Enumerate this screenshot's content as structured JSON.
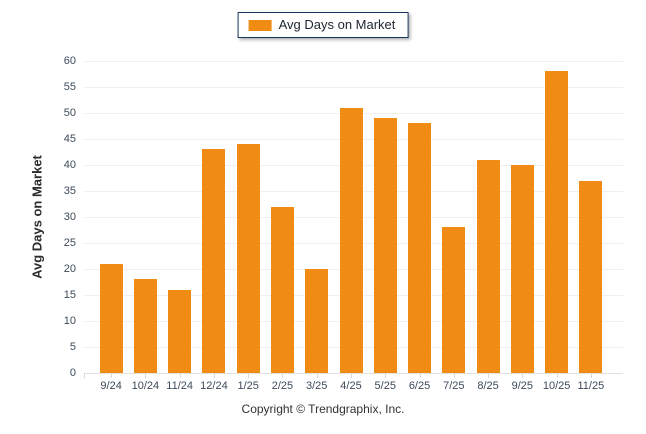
{
  "legend": {
    "label": "Avg Days on Market"
  },
  "y_axis": {
    "title": "Avg Days on Market"
  },
  "footer": {
    "copyright": "Copyright © Trendgraphix, Inc."
  },
  "colors": {
    "bar": "#F08C14",
    "legend_border": "#17365D",
    "gridline": "#EFEFEF",
    "baseline": "#E0E0E0",
    "axis_text": "#3D4A5A",
    "y_title_text": "#2B2B2B",
    "footer_text": "#333333"
  },
  "chart_data": {
    "type": "bar",
    "categories": [
      "9/24",
      "10/24",
      "11/24",
      "12/24",
      "1/25",
      "2/25",
      "3/25",
      "4/25",
      "5/25",
      "6/25",
      "7/25",
      "8/25",
      "9/25",
      "10/25",
      "11/25"
    ],
    "values": [
      21,
      18,
      16,
      43,
      44,
      32,
      20,
      51,
      49,
      48,
      28,
      41,
      40,
      58,
      37
    ],
    "title": "",
    "xlabel": "",
    "ylabel": "Avg Days on Market",
    "ylim": [
      0,
      60
    ],
    "ytick_step": 5,
    "grid": true,
    "legend": [
      "Avg Days on Market"
    ],
    "legend_position": "top-center",
    "bar_color": "#F08C14"
  }
}
